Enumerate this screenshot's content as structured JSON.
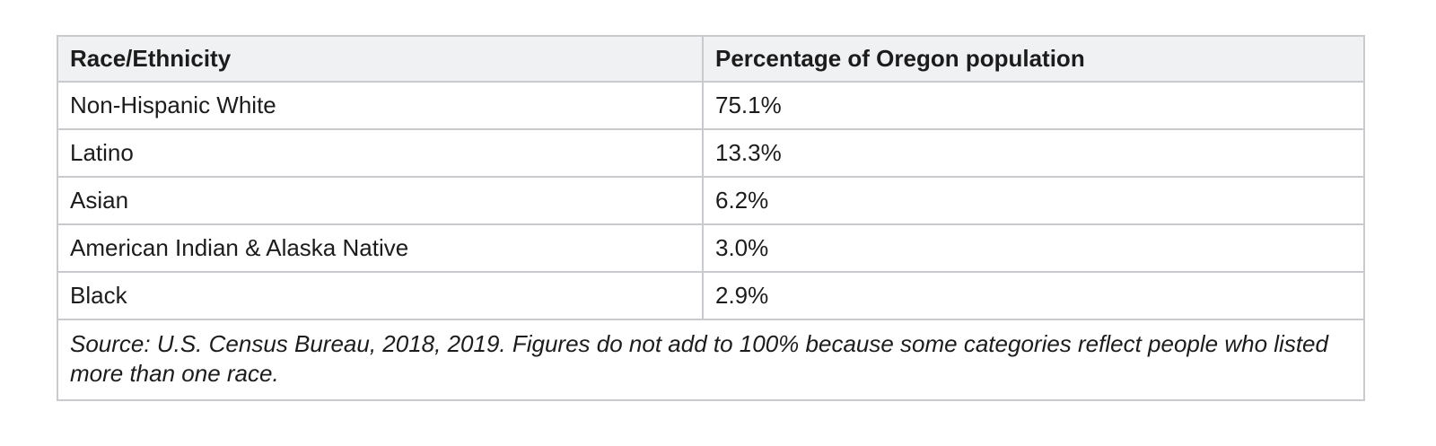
{
  "table": {
    "columns": [
      {
        "label": "Race/Ethnicity"
      },
      {
        "label": "Percentage of Oregon population"
      }
    ],
    "rows": [
      {
        "race": "Non-Hispanic White",
        "percentage": "75.1%"
      },
      {
        "race": "Latino",
        "percentage": "13.3%"
      },
      {
        "race": "Asian",
        "percentage": "6.2%"
      },
      {
        "race": "American Indian & Alaska Native",
        "percentage": "3.0%"
      },
      {
        "race": "Black",
        "percentage": "2.9%"
      }
    ],
    "source_note": "Source: U.S. Census Bureau, 2018, 2019. Figures do not add to 100% because some categories reflect people who listed more than one race."
  },
  "colors": {
    "header_bg": "#f0f1f3",
    "border": "#c8cacd",
    "text": "#1c1c1c",
    "page_bg": "#ffffff"
  }
}
